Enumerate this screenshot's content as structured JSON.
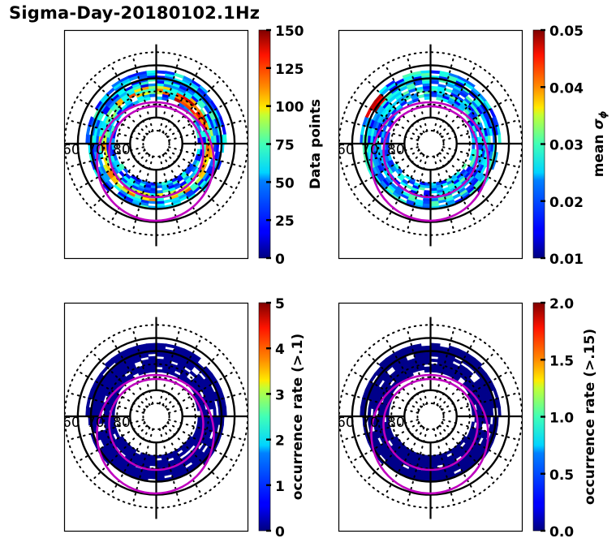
{
  "figure": {
    "title": "Sigma-Day-20180102.1Hz"
  },
  "colors": {
    "grid_solid": "#000000",
    "grid_dotted": "#000000",
    "oval": "#bf00bf",
    "colormap": "jet"
  },
  "chart_data": [
    {
      "type": "heatmap",
      "projection": "polar (magnetic latitude / MLT dial)",
      "panel": "top-left",
      "title": "",
      "lat_labels": [
        "60",
        "70",
        "80"
      ],
      "colorbar": {
        "label": "Data points",
        "range": [
          0,
          150
        ],
        "ticks": [
          "0",
          "25",
          "50",
          "75",
          "100",
          "125",
          "150"
        ]
      },
      "notes": "Counts concentrated in a ring between ~65 and ~75 deg latitude; maxima (~130-150) on dawn-noon side and near 70 deg dusk/midnight"
    },
    {
      "type": "heatmap",
      "projection": "polar (magnetic latitude / MLT dial)",
      "panel": "top-right",
      "title": "",
      "lat_labels": [
        "60",
        "70",
        "80"
      ],
      "colorbar": {
        "label": "mean σϕ",
        "label_plain": "mean sigma_phi",
        "range": [
          0.01,
          0.05
        ],
        "ticks": [
          "0.01",
          "0.02",
          "0.03",
          "0.04",
          "0.05"
        ]
      },
      "notes": "Mostly 0.015-0.03; localized maxima ~0.05 in pre-midnight sector near 65 deg"
    },
    {
      "type": "heatmap",
      "projection": "polar (magnetic latitude / MLT dial)",
      "panel": "bottom-left",
      "title": "",
      "lat_labels": [
        "60",
        "70",
        "80"
      ],
      "colorbar": {
        "label": "occurrence rate (>.1)",
        "range": [
          0,
          5
        ],
        "ticks": [
          "0",
          "1",
          "2",
          "3",
          "4",
          "5"
        ]
      },
      "notes": "Nearly all bins ~0; one bin ~2.5 near midnight at ~72 deg"
    },
    {
      "type": "heatmap",
      "projection": "polar (magnetic latitude / MLT dial)",
      "panel": "bottom-right",
      "title": "",
      "lat_labels": [
        "60",
        "70",
        "80"
      ],
      "colorbar": {
        "label": "occurrence rate (>.15)",
        "range": [
          0.0,
          2.0
        ],
        "ticks": [
          "0.0",
          "0.5",
          "1.0",
          "1.5",
          "2.0"
        ]
      },
      "notes": "All bins ~0"
    }
  ]
}
